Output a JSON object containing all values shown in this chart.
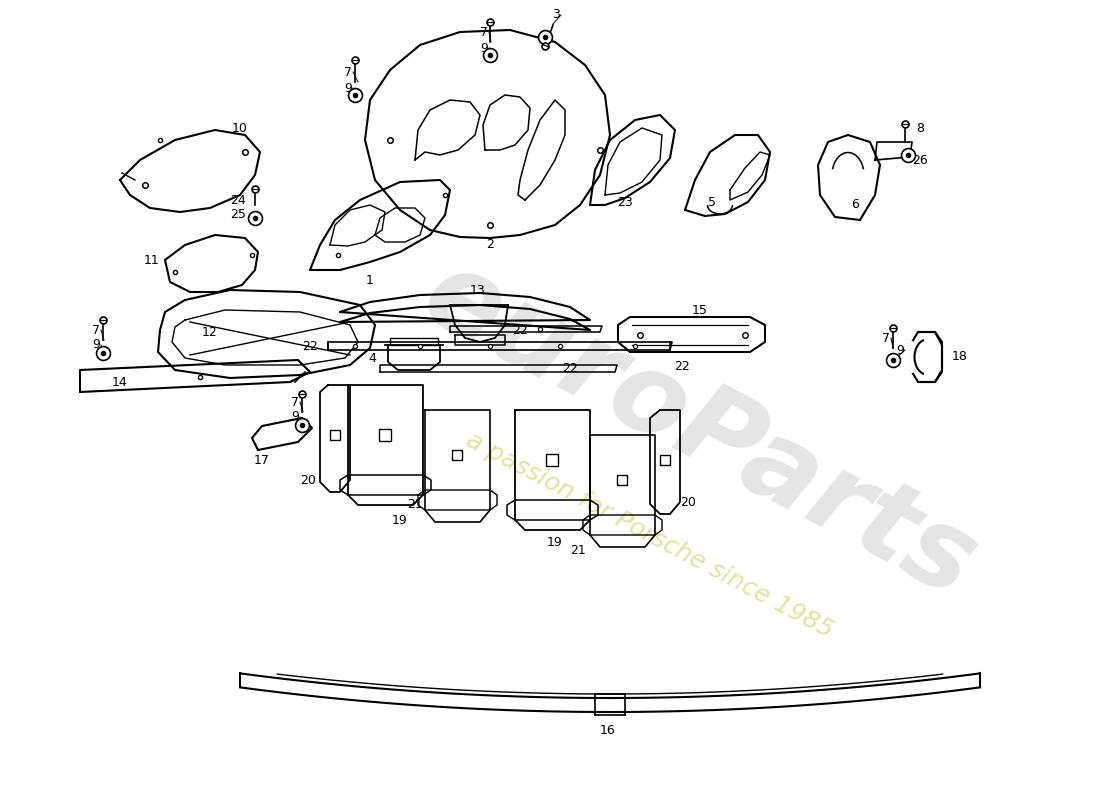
{
  "bg_color": "#ffffff",
  "line_color": "#000000",
  "watermark1": "euroParts",
  "watermark2": "a passion for Porsche since 1985",
  "fig_w": 11.0,
  "fig_h": 8.0,
  "dpi": 100
}
